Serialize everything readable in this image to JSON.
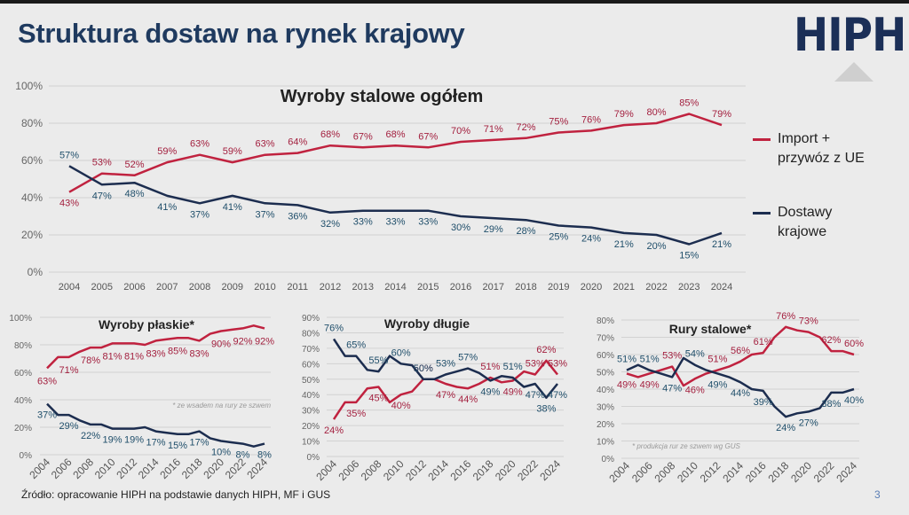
{
  "slide": {
    "title": "Struktura dostaw na rynek krajowy",
    "logo": "HIPH",
    "source": "Źródło: opracowanie HIPH na podstawie danych HIPH, MF i GUS",
    "page_number": "3"
  },
  "colors": {
    "import": "#c0223f",
    "domestic": "#1c2d4f",
    "grid": "#d2d2d2",
    "title": "#1f3a5f"
  },
  "legend": {
    "import": [
      "Import +",
      "przywóz z UE"
    ],
    "domestic": [
      "Dostawy",
      "krajowe"
    ]
  },
  "chart_data": [
    {
      "type": "line",
      "title": "Wyroby stalowe ogółem",
      "x": [
        "2004",
        "2005",
        "2006",
        "2007",
        "2008",
        "2009",
        "2010",
        "2011",
        "2012",
        "2013",
        "2014",
        "2015",
        "2016",
        "2017",
        "2018",
        "2019",
        "2020",
        "2021",
        "2022",
        "2023",
        "2024"
      ],
      "xticks": [
        "2004",
        "2005",
        "2006",
        "2007",
        "2008",
        "2009",
        "2010",
        "2011",
        "2012",
        "2013",
        "2014",
        "2015",
        "2016",
        "2017",
        "2018",
        "2019",
        "2020",
        "2021",
        "2022",
        "2023",
        "2024"
      ],
      "yticks": [
        "0%",
        "20%",
        "40%",
        "60%",
        "80%",
        "100%"
      ],
      "ylim": [
        0,
        100
      ],
      "series": [
        {
          "name": "Import + przywóz z UE",
          "key": "import",
          "values": [
            43,
            53,
            52,
            59,
            63,
            59,
            63,
            64,
            68,
            67,
            68,
            67,
            70,
            71,
            72,
            75,
            76,
            79,
            80,
            85,
            79
          ],
          "labels": [
            "43%",
            "53%",
            "52%",
            "59%",
            "63%",
            "59%",
            "63%",
            "64%",
            "68%",
            "67%",
            "68%",
            "67%",
            "70%",
            "71%",
            "72%",
            "75%",
            "76%",
            "79%",
            "80%",
            "85%",
            "79%"
          ]
        },
        {
          "name": "Dostawy krajowe",
          "key": "domestic",
          "values": [
            57,
            47,
            48,
            41,
            37,
            41,
            37,
            36,
            32,
            33,
            33,
            33,
            30,
            29,
            28,
            25,
            24,
            21,
            20,
            15,
            21
          ],
          "labels": [
            "57%",
            "47%",
            "48%",
            "41%",
            "37%",
            "41%",
            "37%",
            "36%",
            "32%",
            "33%",
            "33%",
            "33%",
            "30%",
            "29%",
            "28%",
            "25%",
            "24%",
            "21%",
            "20%",
            "15%",
            "21%"
          ]
        }
      ]
    },
    {
      "type": "line",
      "title": "Wyroby płaskie*",
      "note": "* ze wsadem na rury ze szwem",
      "x": [
        "2004",
        "2005",
        "2006",
        "2007",
        "2008",
        "2009",
        "2010",
        "2011",
        "2012",
        "2013",
        "2014",
        "2015",
        "2016",
        "2017",
        "2018",
        "2019",
        "2020",
        "2021",
        "2022",
        "2023",
        "2024"
      ],
      "xticks": [
        "2004",
        "2006",
        "2008",
        "2010",
        "2012",
        "2014",
        "2016",
        "2018",
        "2020",
        "2022",
        "2024"
      ],
      "yticks": [
        "0%",
        "20%",
        "40%",
        "60%",
        "80%",
        "100%"
      ],
      "ylim": [
        0,
        100
      ],
      "series": [
        {
          "name": "Import + przywóz z UE",
          "key": "import",
          "values": [
            63,
            71,
            71,
            75,
            78,
            78,
            81,
            81,
            81,
            80,
            83,
            84,
            85,
            85,
            83,
            88,
            90,
            91,
            92,
            94,
            92
          ],
          "labels": [
            "63%",
            "",
            "71%",
            "",
            "78%",
            "",
            "81%",
            "",
            "81%",
            "",
            "83%",
            "",
            "85%",
            "",
            "83%",
            "",
            "90%",
            "",
            "92%",
            "",
            "92%"
          ]
        },
        {
          "name": "Dostawy krajowe",
          "key": "domestic",
          "values": [
            37,
            29,
            29,
            25,
            22,
            22,
            19,
            19,
            19,
            20,
            17,
            16,
            15,
            15,
            17,
            12,
            10,
            9,
            8,
            6,
            8
          ],
          "labels": [
            "37%",
            "",
            "29%",
            "",
            "22%",
            "",
            "19%",
            "",
            "19%",
            "",
            "17%",
            "",
            "15%",
            "",
            "17%",
            "",
            "10%",
            "",
            "8%",
            "",
            "8%"
          ]
        }
      ]
    },
    {
      "type": "line",
      "title": "Wyroby długie",
      "x": [
        "2004",
        "2005",
        "2006",
        "2007",
        "2008",
        "2009",
        "2010",
        "2011",
        "2012",
        "2013",
        "2014",
        "2015",
        "2016",
        "2017",
        "2018",
        "2019",
        "2020",
        "2021",
        "2022",
        "2023",
        "2024"
      ],
      "xticks": [
        "2004",
        "2006",
        "2008",
        "2010",
        "2012",
        "2014",
        "2016",
        "2018",
        "2020",
        "2022",
        "2024"
      ],
      "yticks": [
        "0%",
        "10%",
        "20%",
        "30%",
        "40%",
        "50%",
        "60%",
        "70%",
        "80%",
        "90%"
      ],
      "ylim": [
        0,
        90
      ],
      "series": [
        {
          "name": "Import + przywóz z UE",
          "key": "import",
          "values": [
            24,
            35,
            35,
            44,
            45,
            35,
            40,
            42,
            50,
            50,
            47,
            45,
            44,
            47,
            51,
            48,
            49,
            55,
            53,
            62,
            53
          ],
          "labels": [
            "24%",
            "",
            "35%",
            "",
            "45%",
            "",
            "40%",
            "",
            "50%",
            "",
            "47%",
            "",
            "44%",
            "",
            "51%",
            "",
            "49%",
            "",
            "53%",
            "62%",
            "53%"
          ]
        },
        {
          "name": "Dostawy krajowe",
          "key": "domestic",
          "values": [
            76,
            65,
            65,
            56,
            55,
            65,
            60,
            59,
            50,
            50,
            53,
            55,
            57,
            54,
            49,
            52,
            51,
            45,
            47,
            38,
            47
          ],
          "labels": [
            "76%",
            "",
            "65%",
            "",
            "55%",
            "",
            "60%",
            "",
            "50%",
            "",
            "53%",
            "",
            "57%",
            "",
            "49%",
            "",
            "51%",
            "",
            "47%",
            "38%",
            "47%"
          ]
        }
      ]
    },
    {
      "type": "line",
      "title": "Rury stalowe*",
      "note": "* produkcja rur ze szwem wg GUS",
      "x": [
        "2004",
        "2005",
        "2006",
        "2007",
        "2008",
        "2009",
        "2010",
        "2011",
        "2012",
        "2013",
        "2014",
        "2015",
        "2016",
        "2017",
        "2018",
        "2019",
        "2020",
        "2021",
        "2022",
        "2023",
        "2024"
      ],
      "xticks": [
        "2004",
        "2006",
        "2008",
        "2010",
        "2012",
        "2014",
        "2016",
        "2018",
        "2020",
        "2022",
        "2024"
      ],
      "yticks": [
        "0%",
        "10%",
        "20%",
        "30%",
        "40%",
        "50%",
        "60%",
        "70%",
        "80%"
      ],
      "ylim": [
        0,
        80
      ],
      "series": [
        {
          "name": "Import + przywóz z UE",
          "key": "import",
          "values": [
            49,
            47,
            49,
            51,
            53,
            42,
            46,
            49,
            51,
            53,
            56,
            60,
            61,
            70,
            76,
            74,
            73,
            70,
            62,
            62,
            60
          ],
          "labels": [
            "49%",
            "",
            "49%",
            "",
            "53%",
            "",
            "46%",
            "",
            "51%",
            "",
            "56%",
            "",
            "61%",
            "",
            "76%",
            "",
            "73%",
            "",
            "62%",
            "",
            "60%"
          ]
        },
        {
          "name": "Dostawy krajowe",
          "key": "domestic",
          "values": [
            51,
            54,
            51,
            49,
            47,
            58,
            54,
            51,
            49,
            47,
            44,
            40,
            39,
            30,
            24,
            26,
            27,
            29,
            38,
            38,
            40
          ],
          "labels": [
            "51%",
            "",
            "51%",
            "",
            "47%",
            "",
            "54%",
            "",
            "49%",
            "",
            "44%",
            "",
            "39%",
            "",
            "24%",
            "",
            "27%",
            "",
            "38%",
            "",
            "40%"
          ]
        }
      ]
    }
  ]
}
